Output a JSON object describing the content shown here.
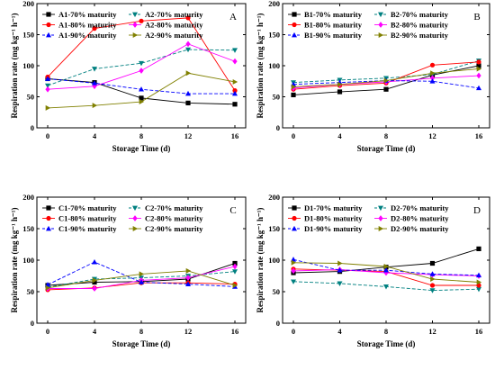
{
  "chart_data": [
    {
      "type": "line",
      "panel_label": "A",
      "xlabel": "Storage Time (d)",
      "ylabel": "Respiration rate (mg kg⁻¹ h⁻¹)",
      "x": [
        0,
        4,
        8,
        12,
        16
      ],
      "xticks": [
        0,
        4,
        8,
        12,
        16
      ],
      "yticks": [
        0,
        50,
        100,
        150,
        200
      ],
      "ylim": [
        0,
        200
      ],
      "legend_placement": "top-left",
      "series": [
        {
          "name": "A1-70% maturity",
          "marker": "square",
          "color": "#000000",
          "dash": "solid",
          "values": [
            79,
            73,
            48,
            40,
            38
          ]
        },
        {
          "name": "A2-70% maturity",
          "marker": "triangle-down",
          "color": "#008080",
          "dash": "dash",
          "values": [
            68,
            95,
            104,
            126,
            125
          ]
        },
        {
          "name": "A1-80% maturity",
          "marker": "circle",
          "color": "#ff0000",
          "dash": "solid",
          "values": [
            82,
            160,
            172,
            177,
            60
          ]
        },
        {
          "name": "A2-80% maturity",
          "marker": "diamond",
          "color": "#ff00ff",
          "dash": "solid",
          "values": [
            62,
            67,
            92,
            135,
            107
          ]
        },
        {
          "name": "A1-90% maturity",
          "marker": "triangle-up",
          "color": "#0000ff",
          "dash": "dash",
          "values": [
            79,
            72,
            62,
            55,
            55
          ]
        },
        {
          "name": "A2-90% maturity",
          "marker": "triangle-right",
          "color": "#808000",
          "dash": "solid",
          "values": [
            32,
            36,
            42,
            88,
            74
          ]
        }
      ]
    },
    {
      "type": "line",
      "panel_label": "B",
      "xlabel": "Storage Time (d)",
      "ylabel": "Respiration rate (mg kg⁻¹ h⁻¹)",
      "x": [
        0,
        4,
        8,
        12,
        16
      ],
      "xticks": [
        0,
        4,
        8,
        12,
        16
      ],
      "yticks": [
        0,
        50,
        100,
        150,
        200
      ],
      "ylim": [
        0,
        200
      ],
      "legend_placement": "top-left",
      "series": [
        {
          "name": "B1-70% maturity",
          "marker": "square",
          "color": "#000000",
          "dash": "solid",
          "values": [
            53,
            58,
            62,
            85,
            100
          ]
        },
        {
          "name": "B2-70% maturity",
          "marker": "triangle-down",
          "color": "#008080",
          "dash": "dash",
          "values": [
            73,
            77,
            80,
            86,
            108
          ]
        },
        {
          "name": "B1-80% maturity",
          "marker": "circle",
          "color": "#ff0000",
          "dash": "solid",
          "values": [
            62,
            68,
            72,
            101,
            106
          ]
        },
        {
          "name": "B2-80% maturity",
          "marker": "diamond",
          "color": "#ff00ff",
          "dash": "solid",
          "values": [
            64,
            70,
            74,
            80,
            84
          ]
        },
        {
          "name": "B1-90% maturity",
          "marker": "triangle-up",
          "color": "#0000ff",
          "dash": "dash",
          "values": [
            70,
            73,
            76,
            75,
            64
          ]
        },
        {
          "name": "B2-90% maturity",
          "marker": "triangle-right",
          "color": "#808000",
          "dash": "solid",
          "values": [
            66,
            70,
            76,
            88,
            95
          ]
        }
      ]
    },
    {
      "type": "line",
      "panel_label": "C",
      "xlabel": "Storage Time (d)",
      "ylabel": "Respiration rate (mg kg⁻¹ h⁻¹)",
      "x": [
        0,
        4,
        8,
        12,
        16
      ],
      "xticks": [
        0,
        4,
        8,
        12,
        16
      ],
      "yticks": [
        0,
        50,
        100,
        150,
        200
      ],
      "ylim": [
        0,
        200
      ],
      "legend_placement": "top-left",
      "series": [
        {
          "name": "C1-70% maturity",
          "marker": "square",
          "color": "#000000",
          "dash": "solid",
          "values": [
            60,
            65,
            66,
            70,
            95
          ]
        },
        {
          "name": "C2-70% maturity",
          "marker": "triangle-down",
          "color": "#008080",
          "dash": "dash",
          "values": [
            57,
            70,
            72,
            75,
            82
          ]
        },
        {
          "name": "C1-80% maturity",
          "marker": "circle",
          "color": "#ff0000",
          "dash": "solid",
          "values": [
            53,
            56,
            64,
            64,
            62
          ]
        },
        {
          "name": "C2-80% maturity",
          "marker": "diamond",
          "color": "#ff00ff",
          "dash": "solid",
          "values": [
            55,
            55,
            68,
            72,
            90
          ]
        },
        {
          "name": "C1-90% maturity",
          "marker": "triangle-up",
          "color": "#0000ff",
          "dash": "dash",
          "values": [
            61,
            97,
            65,
            62,
            58
          ]
        },
        {
          "name": "C2-90% maturity",
          "marker": "triangle-right",
          "color": "#808000",
          "dash": "solid",
          "values": [
            56,
            68,
            78,
            83,
            60
          ]
        }
      ]
    },
    {
      "type": "line",
      "panel_label": "D",
      "xlabel": "Storage Time (d)",
      "ylabel": "Respiration rate (mg kg⁻¹ h⁻¹)",
      "x": [
        0,
        4,
        8,
        12,
        16
      ],
      "xticks": [
        0,
        4,
        8,
        12,
        16
      ],
      "yticks": [
        0,
        50,
        100,
        150,
        200
      ],
      "ylim": [
        0,
        200
      ],
      "legend_placement": "top-left",
      "series": [
        {
          "name": "D1-70% maturity",
          "marker": "square",
          "color": "#000000",
          "dash": "solid",
          "values": [
            80,
            82,
            89,
            95,
            118
          ]
        },
        {
          "name": "D2-70% maturity",
          "marker": "triangle-down",
          "color": "#008080",
          "dash": "dash",
          "values": [
            66,
            63,
            58,
            52,
            54
          ]
        },
        {
          "name": "D1-80% maturity",
          "marker": "circle",
          "color": "#ff0000",
          "dash": "solid",
          "values": [
            86,
            84,
            82,
            60,
            60
          ]
        },
        {
          "name": "D2-80% maturity",
          "marker": "diamond",
          "color": "#ff00ff",
          "dash": "solid",
          "values": [
            83,
            85,
            80,
            77,
            75
          ]
        },
        {
          "name": "D1-90% maturity",
          "marker": "triangle-up",
          "color": "#0000ff",
          "dash": "dash",
          "values": [
            101,
            84,
            84,
            78,
            76
          ]
        },
        {
          "name": "D2-90% maturity",
          "marker": "triangle-right",
          "color": "#808000",
          "dash": "solid",
          "values": [
            96,
            95,
            90,
            70,
            65
          ]
        }
      ]
    }
  ]
}
